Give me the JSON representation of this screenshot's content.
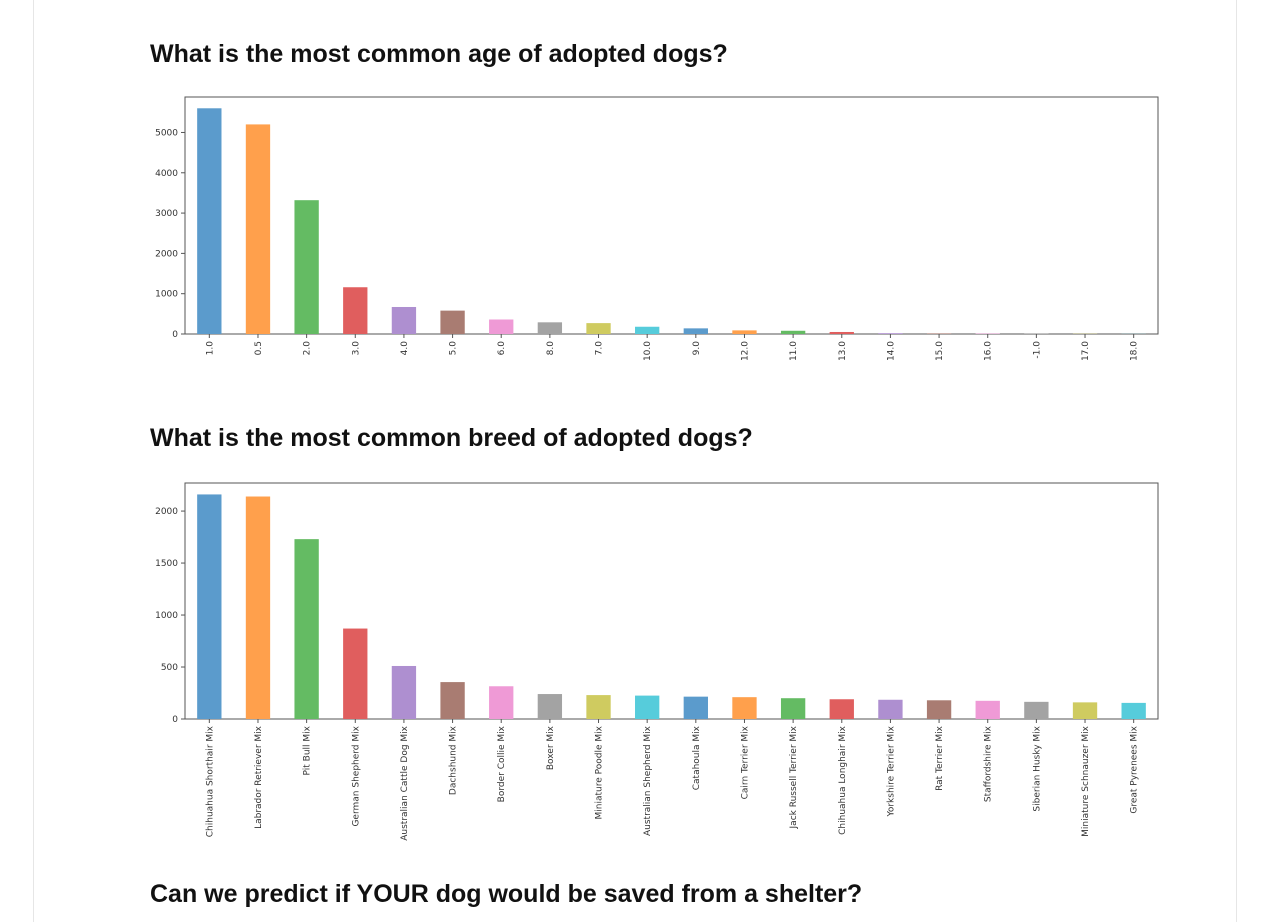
{
  "headings": {
    "age": "What is the most common age of adopted dogs?",
    "breed": "What is the most common breed of adopted dogs?",
    "predict": "Can we predict if YOUR dog would be saved from a shelter?"
  },
  "palette": [
    "#5b9bcc",
    "#ffa04c",
    "#64bb63",
    "#e05e5e",
    "#ae8fd0",
    "#a97c72",
    "#ef9ad6",
    "#a3a3a3",
    "#cfcb60",
    "#56ccdb"
  ],
  "chart_data": [
    {
      "type": "bar",
      "title": "",
      "xlabel": "",
      "ylabel": "",
      "categories": [
        "1.0",
        "0.5",
        "2.0",
        "3.0",
        "4.0",
        "5.0",
        "6.0",
        "8.0",
        "7.0",
        "10.0",
        "9.0",
        "12.0",
        "11.0",
        "13.0",
        "14.0",
        "15.0",
        "16.0",
        "-1.0",
        "17.0",
        "18.0"
      ],
      "values": [
        5600,
        5200,
        3320,
        1160,
        670,
        580,
        360,
        290,
        270,
        180,
        140,
        90,
        80,
        50,
        20,
        15,
        10,
        8,
        6,
        3
      ],
      "ylim": [
        0,
        5880
      ],
      "yticks": [
        0,
        1000,
        2000,
        3000,
        4000,
        5000
      ],
      "grid": false,
      "legend": "none"
    },
    {
      "type": "bar",
      "title": "",
      "xlabel": "",
      "ylabel": "",
      "categories": [
        "Chihuahua Shorthair Mix",
        "Labrador Retriever Mix",
        "Pit Bull Mix",
        "German Shepherd Mix",
        "Australian Cattle Dog Mix",
        "Dachshund Mix",
        "Border Collie Mix",
        "Boxer Mix",
        "Miniature Poodle Mix",
        "Australian Shepherd Mix",
        "Catahoula Mix",
        "Cairn Terrier Mix",
        "Jack Russell Terrier Mix",
        "Chihuahua Longhair Mix",
        "Yorkshire Terrier Mix",
        "Rat Terrier Mix",
        "Staffordshire Mix",
        "Siberian Husky Mix",
        "Miniature Schnauzer Mix",
        "Great Pyrenees Mix"
      ],
      "values": [
        2160,
        2140,
        1730,
        870,
        510,
        355,
        315,
        240,
        230,
        225,
        215,
        210,
        200,
        190,
        185,
        180,
        175,
        165,
        160,
        155
      ],
      "ylim": [
        0,
        2270
      ],
      "yticks": [
        0,
        500,
        1000,
        1500,
        2000
      ],
      "grid": false,
      "legend": "none"
    }
  ]
}
